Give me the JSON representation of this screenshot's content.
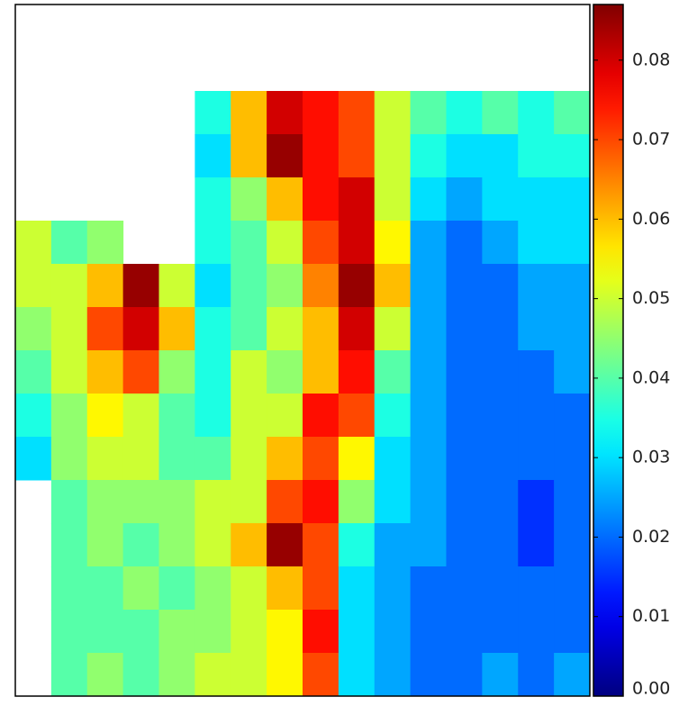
{
  "chart_data": {
    "type": "heatmap",
    "colormap": "jet",
    "clim": [
      0,
      0.087
    ],
    "cticks": [
      {
        "value": 0,
        "label": "0.00"
      },
      0.01,
      0.02,
      0.03,
      0.04,
      0.05,
      0.06,
      0.07,
      0.08
    ],
    "z": [
      [
        null,
        null,
        null,
        null,
        null,
        null,
        null,
        null,
        null,
        null,
        null,
        null,
        null,
        null,
        null,
        null
      ],
      [
        null,
        null,
        null,
        null,
        null,
        null,
        null,
        null,
        null,
        null,
        null,
        null,
        null,
        null,
        null,
        null
      ],
      [
        null,
        null,
        null,
        null,
        null,
        0.035,
        0.06,
        0.08,
        0.075,
        0.07,
        0.05,
        0.04,
        0.035,
        0.04,
        0.035,
        0.04
      ],
      [
        null,
        null,
        null,
        null,
        null,
        0.03,
        0.06,
        0.085,
        0.075,
        0.07,
        0.05,
        0.035,
        0.03,
        0.03,
        0.035,
        0.035
      ],
      [
        null,
        null,
        null,
        null,
        null,
        0.035,
        0.045,
        0.06,
        0.075,
        0.08,
        0.05,
        0.03,
        0.025,
        0.03,
        0.03,
        0.03
      ],
      [
        0.05,
        0.04,
        0.045,
        null,
        null,
        0.035,
        0.04,
        0.05,
        0.07,
        0.08,
        0.055,
        0.025,
        0.02,
        0.025,
        0.03,
        0.03
      ],
      [
        0.05,
        0.05,
        0.06,
        0.085,
        0.05,
        0.03,
        0.04,
        0.045,
        0.065,
        0.085,
        0.06,
        0.025,
        0.02,
        0.02,
        0.025,
        0.025
      ],
      [
        0.045,
        0.05,
        0.07,
        0.08,
        0.06,
        0.035,
        0.04,
        0.05,
        0.06,
        0.08,
        0.05,
        0.025,
        0.02,
        0.02,
        0.025,
        0.025
      ],
      [
        0.04,
        0.05,
        0.06,
        0.07,
        0.045,
        0.035,
        0.05,
        0.045,
        0.06,
        0.075,
        0.04,
        0.025,
        0.02,
        0.02,
        0.02,
        0.025
      ],
      [
        0.035,
        0.045,
        0.055,
        0.05,
        0.04,
        0.035,
        0.05,
        0.05,
        0.075,
        0.07,
        0.035,
        0.025,
        0.02,
        0.02,
        0.02,
        0.02
      ],
      [
        0.03,
        0.045,
        0.05,
        0.05,
        0.04,
        0.04,
        0.05,
        0.06,
        0.07,
        0.055,
        0.03,
        0.025,
        0.02,
        0.02,
        0.02,
        0.02
      ],
      [
        null,
        0.04,
        0.045,
        0.045,
        0.045,
        0.05,
        0.05,
        0.07,
        0.075,
        0.045,
        0.03,
        0.025,
        0.02,
        0.02,
        0.015,
        0.02
      ],
      [
        null,
        0.04,
        0.045,
        0.04,
        0.045,
        0.05,
        0.06,
        0.085,
        0.07,
        0.035,
        0.025,
        0.025,
        0.02,
        0.02,
        0.015,
        0.02
      ],
      [
        null,
        0.04,
        0.04,
        0.045,
        0.04,
        0.045,
        0.05,
        0.06,
        0.07,
        0.03,
        0.025,
        0.02,
        0.02,
        0.02,
        0.02,
        0.02
      ],
      [
        null,
        0.04,
        0.04,
        0.04,
        0.045,
        0.045,
        0.05,
        0.055,
        0.075,
        0.03,
        0.025,
        0.02,
        0.02,
        0.02,
        0.02,
        0.02
      ],
      [
        null,
        0.04,
        0.045,
        0.04,
        0.045,
        0.05,
        0.05,
        0.055,
        0.07,
        0.03,
        0.025,
        0.02,
        0.02,
        0.025,
        0.02,
        0.025
      ]
    ]
  }
}
